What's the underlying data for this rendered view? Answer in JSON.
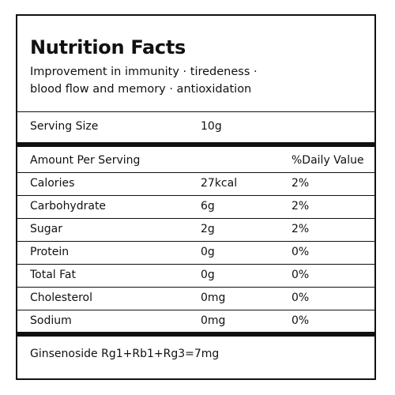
{
  "title": "Nutrition Facts",
  "description": {
    "line1": "Improvement in immunity · tiredeness ·",
    "line2": "blood flow and memory · antioxidation"
  },
  "serving": {
    "label": "Serving Size",
    "value": "10g"
  },
  "table": {
    "header": {
      "amount": "Amount Per Serving",
      "daily": "%Daily Value"
    },
    "rows": [
      {
        "name": "Calories",
        "amount": "27kcal",
        "daily": "2%"
      },
      {
        "name": "Carbohydrate",
        "amount": "6g",
        "daily": "2%"
      },
      {
        "name": "Sugar",
        "amount": "2g",
        "daily": "2%"
      },
      {
        "name": "Protein",
        "amount": "0g",
        "daily": "0%"
      },
      {
        "name": "Total Fat",
        "amount": "0g",
        "daily": "0%"
      },
      {
        "name": "Cholesterol",
        "amount": "0mg",
        "daily": "0%"
      },
      {
        "name": "Sodium",
        "amount": "0mg",
        "daily": "0%"
      }
    ]
  },
  "footer": "Ginsenoside Rg1+Rb1+Rg3=7mg"
}
